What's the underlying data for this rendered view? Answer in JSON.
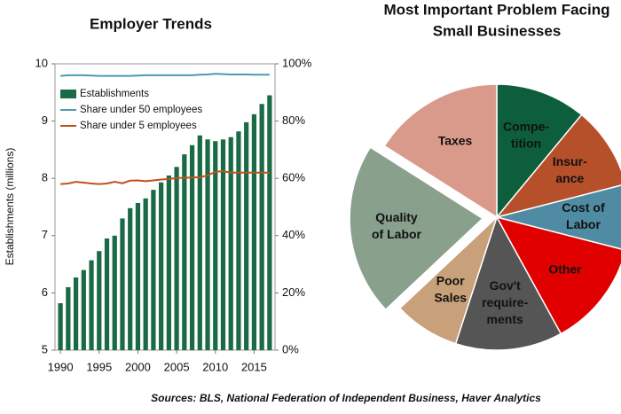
{
  "chart_data": [
    {
      "type": "bar_line",
      "title": "Employer Trends",
      "ylabel": "Establishments (millions)",
      "x": [
        1990,
        1991,
        1992,
        1993,
        1994,
        1995,
        1996,
        1997,
        1998,
        1999,
        2000,
        2001,
        2002,
        2003,
        2004,
        2005,
        2006,
        2007,
        2008,
        2009,
        2010,
        2011,
        2012,
        2013,
        2014,
        2015,
        2016,
        2017
      ],
      "xlim": [
        1989.3,
        2017.7
      ],
      "xticks": [
        1990,
        1995,
        2000,
        2005,
        2010,
        2015
      ],
      "ylim": [
        5,
        10
      ],
      "yticks": [
        5,
        6,
        7,
        8,
        9,
        10
      ],
      "y2lim": [
        0,
        100
      ],
      "y2ticks": [
        {
          "value": 0,
          "label": "0%"
        },
        {
          "value": 20,
          "label": "20%"
        },
        {
          "value": 40,
          "label": "40%"
        },
        {
          "value": 60,
          "label": "60%"
        },
        {
          "value": 80,
          "label": "80%"
        },
        {
          "value": 100,
          "label": "100%"
        }
      ],
      "series": [
        {
          "name": "Establishments",
          "kind": "bar",
          "color": "#1a6b45",
          "values": [
            5.82,
            6.1,
            6.27,
            6.4,
            6.57,
            6.73,
            6.95,
            7.0,
            7.3,
            7.48,
            7.57,
            7.65,
            7.8,
            7.93,
            8.05,
            8.2,
            8.42,
            8.58,
            8.75,
            8.68,
            8.65,
            8.68,
            8.72,
            8.82,
            8.98,
            9.12,
            9.3,
            9.45
          ]
        },
        {
          "name": "Share under 50 employees",
          "kind": "line",
          "axis": "y2",
          "color": "#4a9bb0",
          "values": [
            95.8,
            96,
            96,
            96,
            95.9,
            95.8,
            95.8,
            95.8,
            95.8,
            95.8,
            95.9,
            96,
            96,
            96,
            96,
            96,
            96,
            96,
            96.2,
            96.3,
            96.5,
            96.4,
            96.3,
            96.3,
            96.3,
            96.2,
            96.2,
            96.2
          ]
        },
        {
          "name": "Share under 5 employees",
          "kind": "line",
          "axis": "y2",
          "color": "#c0501f",
          "values": [
            58,
            58.2,
            58.8,
            58.5,
            58.2,
            58,
            58.2,
            58.8,
            58.3,
            59.2,
            59.3,
            59,
            59.3,
            59.6,
            59.8,
            60.1,
            60.2,
            60.3,
            60.4,
            61,
            62.3,
            62.5,
            62,
            62,
            62,
            62,
            62,
            62
          ]
        }
      ]
    },
    {
      "type": "pie",
      "title": [
        "Most Important Problem Facing",
        "Small Businesses"
      ],
      "categories": [
        [
          "Compe-",
          "tition"
        ],
        [
          "Insur-",
          "ance"
        ],
        [
          "Cost of",
          "Labor"
        ],
        [
          "Other"
        ],
        [
          "Gov't",
          "require-",
          "ments"
        ],
        [
          "Poor",
          "Sales"
        ],
        [
          "Quality",
          "of Labor"
        ],
        [
          "Taxes"
        ]
      ],
      "values": [
        11,
        10,
        8,
        13,
        13,
        8,
        21,
        16
      ],
      "colors": [
        "#0d5e3c",
        "#b5502a",
        "#4f8ca3",
        "#e00000",
        "#555555",
        "#c8a07a",
        "#88a08c",
        "#d99a8c"
      ],
      "exploded": [
        false,
        false,
        false,
        false,
        false,
        false,
        true,
        false
      ]
    }
  ],
  "source": "Sources: BLS, National Federation of Independent Business, Haver Analytics"
}
